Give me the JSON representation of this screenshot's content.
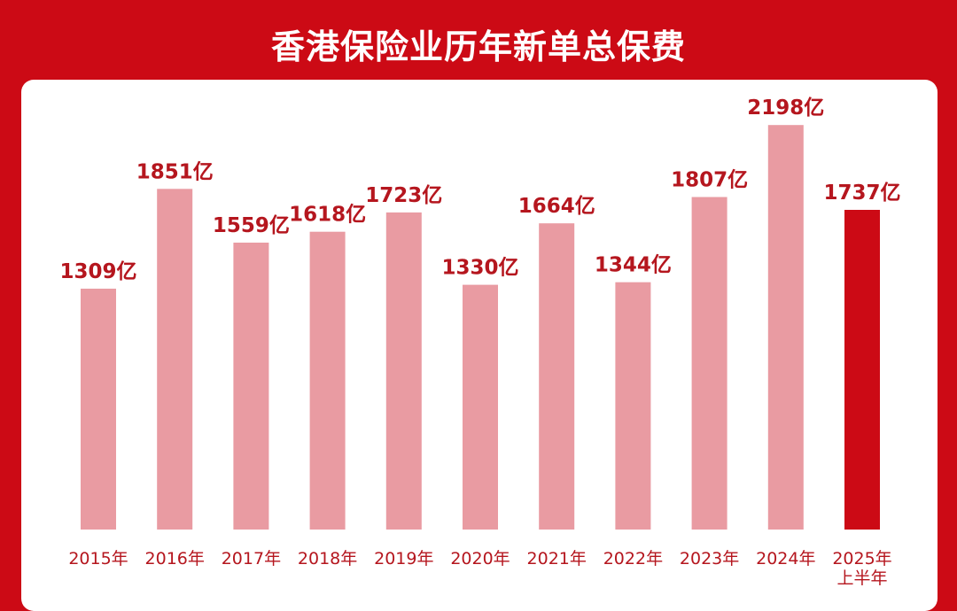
{
  "title": "香港保险业历年新单总保费",
  "colors": {
    "background": "#cc0a15",
    "bar": "#e99ba2",
    "highlight_bar": "#cc0a15",
    "label": "#b5161e"
  },
  "chart_data": {
    "type": "bar",
    "title": "香港保险业历年新单总保费",
    "xlabel": "",
    "ylabel": "",
    "unit": "亿",
    "categories": [
      "2015年",
      "2016年",
      "2017年",
      "2018年",
      "2019年",
      "2020年",
      "2021年",
      "2022年",
      "2023年",
      "2024年",
      "2025年上半年"
    ],
    "values": [
      1309,
      1851,
      1559,
      1618,
      1723,
      1330,
      1664,
      1344,
      1807,
      2198,
      1737
    ],
    "data_labels": [
      "1309亿",
      "1851亿",
      "1559亿",
      "1618亿",
      "1723亿",
      "1330亿",
      "1664亿",
      "1344亿",
      "1807亿",
      "2198亿",
      "1737亿"
    ],
    "highlight_index": 10,
    "ylim": [
      0,
      2300
    ],
    "grid": false,
    "legend": "none"
  }
}
